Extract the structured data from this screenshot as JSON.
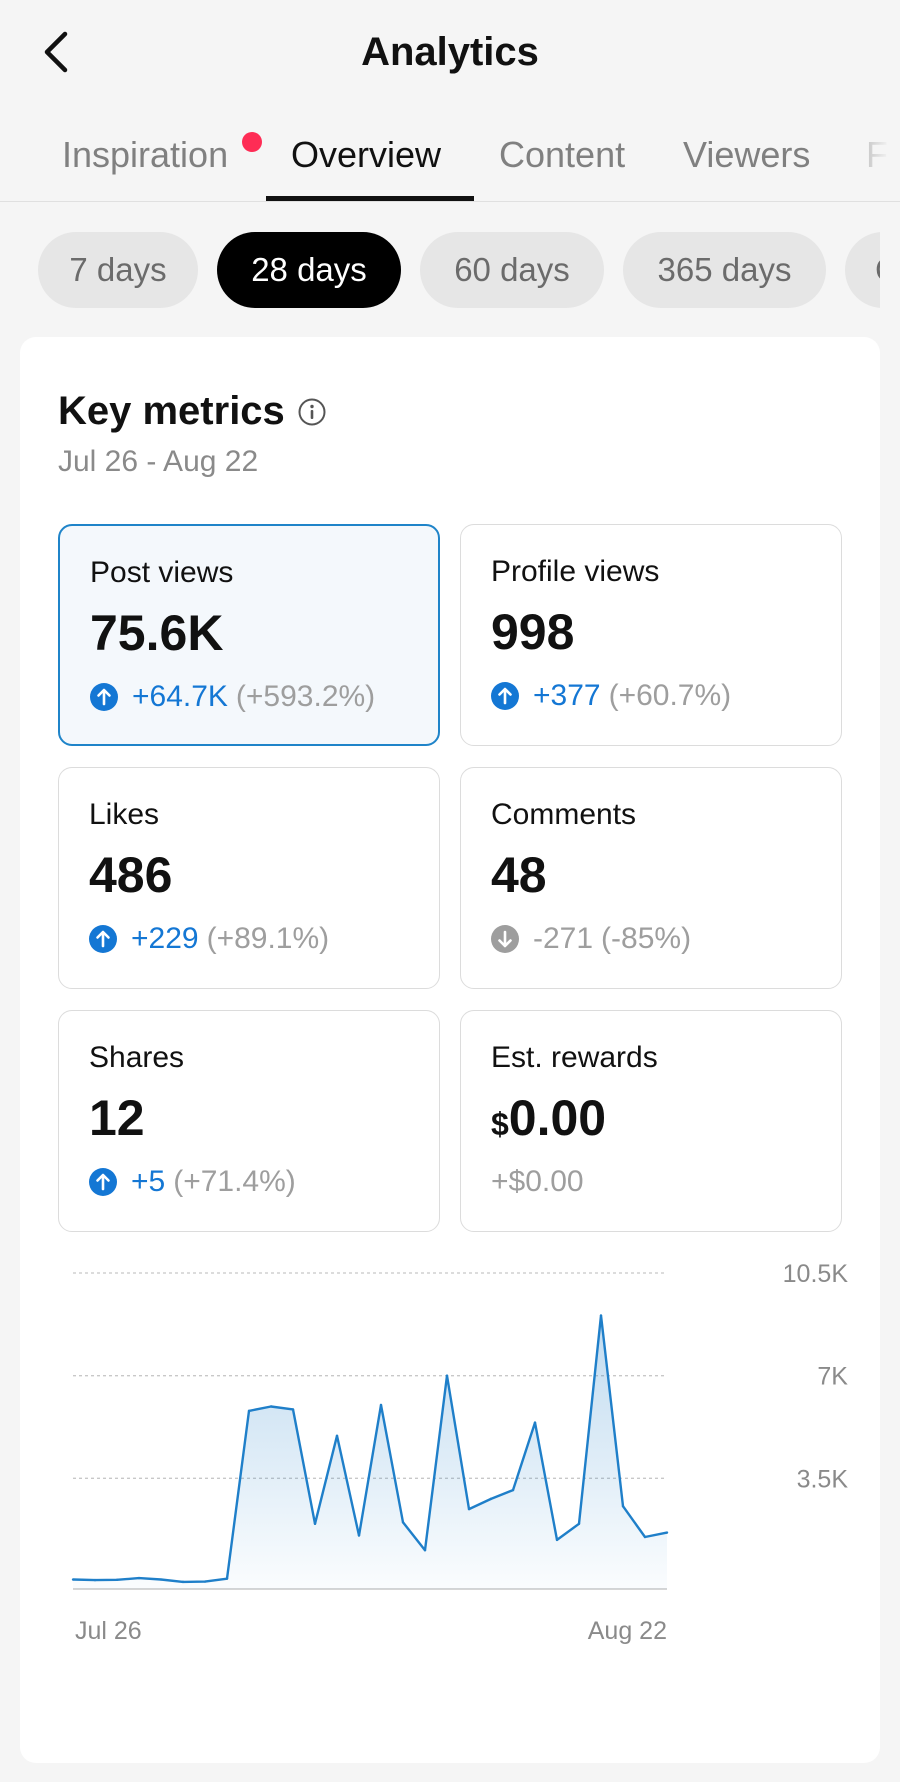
{
  "header": {
    "title": "Analytics"
  },
  "tabs": [
    {
      "label": "Inspiration",
      "notification": true
    },
    {
      "label": "Overview",
      "active": true
    },
    {
      "label": "Content"
    },
    {
      "label": "Viewers"
    },
    {
      "label": "Fo"
    }
  ],
  "chips": [
    {
      "label": "7 days"
    },
    {
      "label": "28 days",
      "active": true
    },
    {
      "label": "60 days"
    },
    {
      "label": "365 days"
    },
    {
      "label": "C"
    }
  ],
  "key_metrics": {
    "title": "Key metrics",
    "date_range": "Jul 26 - Aug 22",
    "metrics": [
      {
        "label": "Post views",
        "value": "75.6K",
        "change": "+64.7K",
        "pct": "(+593.2%)",
        "trend": "up"
      },
      {
        "label": "Profile views",
        "value": "998",
        "change": "+377",
        "pct": "(+60.7%)",
        "trend": "up"
      },
      {
        "label": "Likes",
        "value": "486",
        "change": "+229",
        "pct": "(+89.1%)",
        "trend": "up"
      },
      {
        "label": "Comments",
        "value": "48",
        "change": "-271",
        "pct": "(-85%)",
        "trend": "down"
      },
      {
        "label": "Shares",
        "value": "12",
        "change": "+5",
        "pct": "(+71.4%)",
        "trend": "up"
      },
      {
        "label": "Est. rewards",
        "currency": "$",
        "value": "0.00",
        "change": "+$0.00",
        "pct": "",
        "trend": "none"
      }
    ]
  },
  "colors": {
    "accent": "#1477d4",
    "down": "#9e9e9e",
    "notification": "#fe2c55",
    "line": "#1f7fc9"
  },
  "chart_data": {
    "type": "area",
    "x_start_label": "Jul 26",
    "x_end_label": "Aug 22",
    "y_ticks": [
      "3.5K",
      "7K",
      "10.5K"
    ],
    "ylim": [
      0,
      10500
    ],
    "values": [
      50,
      30,
      40,
      100,
      50,
      -30,
      -20,
      80,
      5800,
      5950,
      5850,
      1950,
      4950,
      1550,
      6000,
      2000,
      1050,
      7000,
      2450,
      2800,
      3100,
      5400,
      1400,
      1950,
      9050,
      2550,
      1500,
      1650
    ]
  }
}
